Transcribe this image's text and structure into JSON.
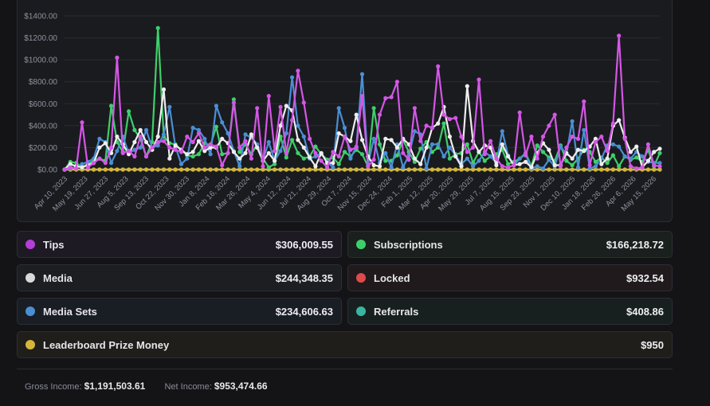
{
  "chart_data": {
    "type": "line",
    "ylim": [
      0,
      1400
    ],
    "y_ticks": [
      0,
      200,
      400,
      600,
      800,
      1000,
      1200,
      1400
    ],
    "y_tick_labels": [
      "$0.00",
      "$200.00",
      "$400.00",
      "$600.00",
      "$800.00",
      "$1000.00",
      "$1200.00",
      "$1400.00"
    ],
    "x_tick_labels": [
      "Apr 10, 2023",
      "May 19, 2023",
      "Jun 27, 2023",
      "Aug 5, 2023",
      "Sep 13, 2023",
      "Oct 22, 2023",
      "Nov 30, 2023",
      "Jan 8, 2024",
      "Feb 16, 2024",
      "Mar 26, 2024",
      "May 4, 2024",
      "Jun 12, 2024",
      "Jul 21, 2024",
      "Aug 29, 2024",
      "Oct 7, 2024",
      "Nov 15, 2024",
      "Dec 24, 2024",
      "Feb 1, 2025",
      "Mar 12, 2025",
      "Apr 20, 2025",
      "May 29, 2025",
      "Jul 7, 2025",
      "Aug 15, 2025",
      "Sep 23, 2025",
      "Nov 1, 2025",
      "Dec 10, 2025",
      "Jan 18, 2026",
      "Feb 26, 2026",
      "Apr 6, 2026",
      "May 15, 2026"
    ],
    "grid": true,
    "series": [
      {
        "name": "Tips",
        "color": "#d556e6",
        "values": [
          0,
          20,
          10,
          430,
          20,
          60,
          100,
          60,
          200,
          1020,
          150,
          170,
          120,
          300,
          120,
          200,
          250,
          260,
          200,
          180,
          160,
          300,
          250,
          330,
          200,
          230,
          210,
          40,
          150,
          610,
          200,
          260,
          100,
          560,
          30,
          670,
          170,
          570,
          150,
          450,
          900,
          610,
          280,
          150,
          80,
          20,
          160,
          120,
          300,
          180,
          200,
          670,
          30,
          90,
          500,
          650,
          660,
          800,
          150,
          90,
          560,
          260,
          400,
          380,
          940,
          500,
          460,
          470,
          300,
          160,
          200,
          820,
          140,
          260,
          100,
          30,
          20,
          40,
          520,
          130,
          300,
          100,
          300,
          400,
          500,
          30,
          200,
          300,
          280,
          620,
          40,
          250,
          300,
          170,
          420,
          1220,
          280,
          30,
          10,
          20,
          230,
          40,
          30
        ]
      },
      {
        "name": "Media",
        "color": "#eeeeee",
        "values": [
          0,
          50,
          30,
          20,
          40,
          60,
          200,
          240,
          150,
          300,
          230,
          140,
          250,
          360,
          250,
          180,
          300,
          730,
          100,
          220,
          180,
          140,
          160,
          260,
          170,
          200,
          200,
          280,
          240,
          160,
          100,
          150,
          320,
          200,
          80,
          150,
          80,
          400,
          580,
          540,
          270,
          200,
          110,
          30,
          150,
          60,
          60,
          330,
          300,
          260,
          500,
          270,
          120,
          40,
          30,
          280,
          270,
          200,
          280,
          230,
          100,
          50,
          200,
          380,
          420,
          570,
          300,
          120,
          30,
          760,
          260,
          160,
          220,
          200,
          40,
          230,
          120,
          40,
          50,
          70,
          20,
          150,
          240,
          180,
          40,
          40,
          150,
          100,
          180,
          170,
          210,
          280,
          50,
          100,
          400,
          450,
          290,
          160,
          210,
          20,
          80,
          160,
          190
        ]
      },
      {
        "name": "Media Sets",
        "color": "#4a8fd4",
        "values": [
          0,
          10,
          20,
          50,
          70,
          100,
          280,
          250,
          60,
          170,
          300,
          150,
          180,
          200,
          360,
          200,
          220,
          320,
          570,
          210,
          50,
          100,
          380,
          360,
          280,
          140,
          580,
          430,
          330,
          170,
          30,
          320,
          290,
          230,
          90,
          250,
          80,
          170,
          330,
          840,
          400,
          300,
          100,
          120,
          150,
          70,
          20,
          560,
          380,
          100,
          210,
          870,
          50,
          280,
          60,
          150,
          20,
          230,
          20,
          130,
          350,
          320,
          10,
          230,
          230,
          120,
          200,
          130,
          50,
          100,
          30,
          80,
          160,
          120,
          60,
          350,
          130,
          40,
          100,
          140,
          10,
          30,
          10,
          90,
          30,
          210,
          140,
          440,
          20,
          360,
          10,
          30,
          100,
          220,
          230,
          210,
          120,
          100,
          160,
          120,
          70,
          60,
          60
        ]
      },
      {
        "name": "Subscriptions",
        "color": "#3fcf6a",
        "values": [
          0,
          70,
          60,
          20,
          50,
          80,
          100,
          80,
          580,
          250,
          160,
          530,
          360,
          280,
          120,
          250,
          1290,
          300,
          240,
          230,
          180,
          130,
          120,
          140,
          240,
          220,
          390,
          140,
          150,
          640,
          160,
          230,
          140,
          230,
          100,
          20,
          50,
          300,
          110,
          270,
          150,
          100,
          120,
          210,
          140,
          90,
          110,
          50,
          160,
          120,
          180,
          140,
          30,
          560,
          230,
          80,
          80,
          130,
          270,
          160,
          70,
          190,
          250,
          160,
          200,
          420,
          100,
          140,
          150,
          230,
          60,
          160,
          80,
          120,
          140,
          180,
          50,
          70,
          100,
          150,
          30,
          220,
          160,
          110,
          80,
          220,
          80,
          40,
          100,
          180,
          160,
          70,
          110,
          60,
          130,
          30,
          120,
          90,
          110,
          70,
          180,
          30,
          150
        ]
      },
      {
        "name": "Locked",
        "color": "#e04a4a",
        "values": [
          0,
          0,
          0,
          0,
          0,
          0,
          0,
          0,
          0,
          0,
          0,
          0,
          0,
          0,
          0,
          0,
          0,
          0,
          0,
          0,
          0,
          0,
          0,
          0,
          0,
          0,
          0,
          0,
          0,
          0,
          0,
          0,
          0,
          0,
          0,
          0,
          0,
          0,
          0,
          0,
          0,
          0,
          0,
          0,
          0,
          0,
          0,
          0,
          0,
          0,
          0,
          0,
          0,
          0,
          0,
          0,
          0,
          0,
          0,
          0,
          0,
          0,
          0,
          0,
          0,
          0,
          0,
          0,
          0,
          0,
          0,
          0,
          0,
          0,
          0,
          0,
          0,
          0,
          0,
          0,
          0,
          0,
          0,
          0,
          0,
          0,
          0,
          0,
          0,
          0,
          0,
          0,
          0,
          0,
          0,
          0,
          0,
          0,
          0,
          0,
          0,
          0,
          0
        ]
      },
      {
        "name": "Referrals",
        "color": "#3ab5a0",
        "values": [
          0,
          0,
          0,
          0,
          0,
          0,
          0,
          0,
          0,
          0,
          0,
          0,
          0,
          0,
          0,
          0,
          0,
          0,
          0,
          0,
          0,
          0,
          0,
          0,
          0,
          0,
          0,
          0,
          0,
          0,
          0,
          0,
          0,
          0,
          0,
          0,
          0,
          0,
          0,
          0,
          0,
          0,
          0,
          0,
          0,
          0,
          0,
          0,
          0,
          0,
          0,
          0,
          0,
          0,
          0,
          0,
          0,
          0,
          0,
          0,
          0,
          0,
          0,
          0,
          0,
          0,
          0,
          0,
          0,
          0,
          0,
          0,
          0,
          0,
          0,
          0,
          0,
          0,
          0,
          0,
          0,
          0,
          0,
          0,
          0,
          0,
          0,
          0,
          0,
          0,
          0,
          0,
          0,
          0,
          0,
          0,
          0,
          0,
          0,
          0,
          0,
          0,
          0
        ]
      },
      {
        "name": "Leaderboard Prize Money",
        "color": "#d4b63a",
        "values": [
          0,
          0,
          0,
          0,
          0,
          0,
          0,
          0,
          0,
          0,
          0,
          0,
          0,
          0,
          0,
          0,
          0,
          0,
          0,
          0,
          0,
          0,
          0,
          0,
          0,
          0,
          0,
          0,
          0,
          0,
          0,
          0,
          0,
          0,
          0,
          0,
          0,
          0,
          0,
          0,
          0,
          0,
          0,
          0,
          0,
          0,
          0,
          0,
          0,
          0,
          0,
          0,
          0,
          0,
          0,
          0,
          0,
          0,
          0,
          0,
          0,
          0,
          0,
          0,
          0,
          0,
          0,
          0,
          0,
          0,
          0,
          0,
          0,
          0,
          0,
          0,
          0,
          0,
          0,
          0,
          0,
          0,
          0,
          0,
          0,
          0,
          0,
          0,
          0,
          0,
          0,
          0,
          0,
          0,
          0,
          0,
          0,
          0,
          0,
          0,
          0,
          0,
          0
        ]
      }
    ]
  },
  "categories": [
    {
      "label": "Tips",
      "amount": "$306,009.55",
      "color": "#b23fd6"
    },
    {
      "label": "Subscriptions",
      "amount": "$166,218.72",
      "color": "#3fcf6a"
    },
    {
      "label": "Media",
      "amount": "$244,348.35",
      "color": "#d9d9d9"
    },
    {
      "label": "Locked",
      "amount": "$932.54",
      "color": "#e04a4a"
    },
    {
      "label": "Media Sets",
      "amount": "$234,606.63",
      "color": "#4a8fd4"
    },
    {
      "label": "Referrals",
      "amount": "$408.86",
      "color": "#3ab5a0"
    },
    {
      "label": "Leaderboard Prize Money",
      "amount": "$950",
      "color": "#d4b63a"
    }
  ],
  "footer": {
    "gross_label": "Gross Income:",
    "gross_value": "$1,191,503.61",
    "net_label": "Net Income:",
    "net_value": "$953,474.66"
  }
}
